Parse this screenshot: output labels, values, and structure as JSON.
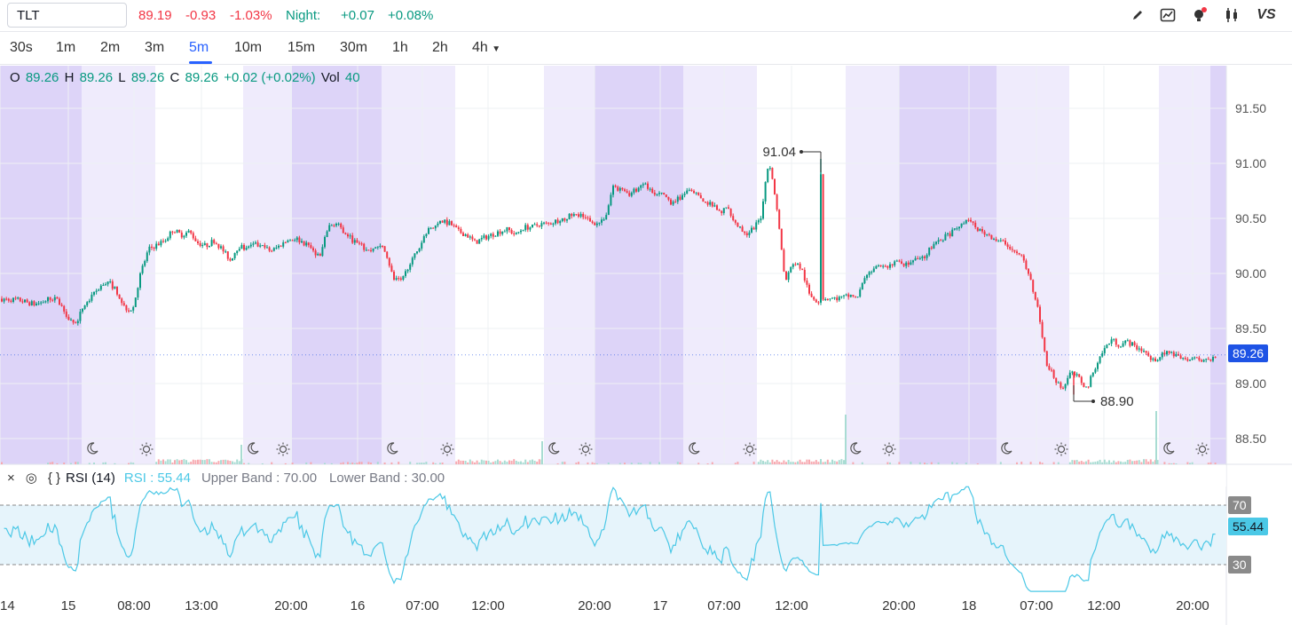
{
  "quote": {
    "symbol": "TLT",
    "price": "89.19",
    "change": "-0.93",
    "change_pct": "-1.03%",
    "night_label": "Night:",
    "night_change": "+0.07",
    "night_change_pct": "+0.08%"
  },
  "toolbar_icons": [
    "pencil-icon",
    "chart-type-icon",
    "indicator-bulb-icon",
    "candles-icon",
    "vs-compare-icon"
  ],
  "compare_label": "VS",
  "intervals": [
    "30s",
    "1m",
    "2m",
    "3m",
    "5m",
    "10m",
    "15m",
    "30m",
    "1h",
    "2h",
    "4h"
  ],
  "active_interval": "5m",
  "ohlc": {
    "o_label": "O",
    "o": "89.26",
    "h_label": "H",
    "h": "89.26",
    "l_label": "L",
    "l": "89.26",
    "c_label": "C",
    "c": "89.26",
    "change": "+0.02 (+0.02%)",
    "vol_label": "Vol",
    "vol": "40"
  },
  "rsi_legend": {
    "close_icon": "×",
    "settings_icon": "◎",
    "code_icon": "{ }",
    "title": "RSI (14)",
    "value_text": "RSI : 55.44",
    "upper_band": "Upper Band : 70.00",
    "lower_band": "Lower Band : 30.00"
  },
  "colors": {
    "up": "#089981",
    "down": "#f23645",
    "rsi_line": "#4bc8e6",
    "night_shade": "#ddd4f8",
    "pre_post_shade": "#efebfc",
    "price_badge": "#1e53e5"
  },
  "chart_data": {
    "type": "candlestick",
    "symbol": "TLT",
    "interval": "5m",
    "price_axis": {
      "ticks": [
        88.5,
        89.0,
        89.5,
        90.0,
        90.5,
        91.0,
        91.5
      ],
      "labels": [
        "88.50",
        "89.00",
        "89.50",
        "90.00",
        "90.50",
        "91.00",
        "91.50"
      ],
      "range": [
        88.4,
        91.8
      ]
    },
    "time_axis": {
      "labels": [
        "14",
        "15",
        "08:00",
        "13:00",
        "20:00",
        "16",
        "07:00",
        "12:00",
        "20:00",
        "17",
        "07:00",
        "12:00",
        "20:00",
        "18",
        "07:00",
        "12:00",
        "20:00"
      ]
    },
    "annotations": {
      "high": "91.04",
      "low": "88.90"
    },
    "last_price": "89.26",
    "price_path": [
      [
        0,
        89.77
      ],
      [
        2,
        89.76
      ],
      [
        4,
        89.72
      ],
      [
        5,
        89.74
      ],
      [
        6,
        89.78
      ],
      [
        7,
        89.75
      ],
      [
        8,
        89.62
      ],
      [
        9,
        89.53
      ],
      [
        10,
        89.7
      ],
      [
        11,
        89.78
      ],
      [
        12,
        89.88
      ],
      [
        13,
        89.93
      ],
      [
        14,
        89.85
      ],
      [
        15,
        89.7
      ],
      [
        16,
        89.65
      ],
      [
        17,
        90.0
      ],
      [
        18,
        90.22
      ],
      [
        19,
        90.26
      ],
      [
        20,
        90.3
      ],
      [
        21,
        90.4
      ],
      [
        22,
        90.35
      ],
      [
        23,
        90.38
      ],
      [
        24,
        90.28
      ],
      [
        25,
        90.25
      ],
      [
        26,
        90.3
      ],
      [
        27,
        90.22
      ],
      [
        28,
        90.12
      ],
      [
        29,
        90.25
      ],
      [
        30,
        90.22
      ],
      [
        31,
        90.26
      ],
      [
        32,
        90.24
      ],
      [
        33,
        90.2
      ],
      [
        34,
        90.25
      ],
      [
        35,
        90.3
      ],
      [
        36,
        90.32
      ],
      [
        37,
        90.28
      ],
      [
        38,
        90.22
      ],
      [
        39,
        90.15
      ],
      [
        40,
        90.42
      ],
      [
        41,
        90.45
      ],
      [
        42,
        90.38
      ],
      [
        43,
        90.3
      ],
      [
        44,
        90.25
      ],
      [
        45,
        90.2
      ],
      [
        46,
        90.25
      ],
      [
        47,
        90.22
      ],
      [
        48,
        89.95
      ],
      [
        49,
        89.92
      ],
      [
        50,
        90.1
      ],
      [
        51,
        90.2
      ],
      [
        52,
        90.38
      ],
      [
        53,
        90.42
      ],
      [
        54,
        90.47
      ],
      [
        55,
        90.45
      ],
      [
        56,
        90.38
      ],
      [
        57,
        90.35
      ],
      [
        58,
        90.28
      ],
      [
        59,
        90.32
      ],
      [
        60,
        90.35
      ],
      [
        61,
        90.38
      ],
      [
        62,
        90.4
      ],
      [
        63,
        90.35
      ],
      [
        64,
        90.42
      ],
      [
        65,
        90.42
      ],
      [
        66,
        90.45
      ],
      [
        67,
        90.45
      ],
      [
        68,
        90.48
      ],
      [
        69,
        90.5
      ],
      [
        70,
        90.53
      ],
      [
        71,
        90.52
      ],
      [
        72,
        90.48
      ],
      [
        73,
        90.45
      ],
      [
        74,
        90.52
      ],
      [
        75,
        90.8
      ],
      [
        76,
        90.75
      ],
      [
        77,
        90.72
      ],
      [
        78,
        90.78
      ],
      [
        79,
        90.8
      ],
      [
        80,
        90.7
      ],
      [
        81,
        90.72
      ],
      [
        82,
        90.65
      ],
      [
        83,
        90.68
      ],
      [
        84,
        90.75
      ],
      [
        85,
        90.72
      ],
      [
        86,
        90.65
      ],
      [
        87,
        90.62
      ],
      [
        88,
        90.55
      ],
      [
        89,
        90.6
      ],
      [
        90,
        90.45
      ],
      [
        91,
        90.35
      ],
      [
        92,
        90.4
      ],
      [
        93,
        90.5
      ],
      [
        94,
        91.04
      ],
      [
        95,
        90.6
      ],
      [
        96,
        89.92
      ],
      [
        97,
        90.1
      ],
      [
        98,
        90.05
      ],
      [
        99,
        89.8
      ],
      [
        100,
        89.75
      ],
      [
        101,
        89.78
      ],
      [
        102,
        89.77
      ],
      [
        103,
        89.78
      ],
      [
        104,
        89.8
      ],
      [
        105,
        89.8
      ],
      [
        106,
        90.0
      ],
      [
        107,
        90.05
      ],
      [
        108,
        90.05
      ],
      [
        109,
        90.08
      ],
      [
        110,
        90.1
      ],
      [
        111,
        90.08
      ],
      [
        112,
        90.12
      ],
      [
        113,
        90.15
      ],
      [
        114,
        90.25
      ],
      [
        115,
        90.3
      ],
      [
        116,
        90.35
      ],
      [
        117,
        90.4
      ],
      [
        118,
        90.48
      ],
      [
        119,
        90.45
      ],
      [
        120,
        90.38
      ],
      [
        121,
        90.35
      ],
      [
        122,
        90.3
      ],
      [
        123,
        90.28
      ],
      [
        124,
        90.2
      ],
      [
        125,
        90.15
      ],
      [
        126,
        89.95
      ],
      [
        127,
        89.7
      ],
      [
        128,
        89.2
      ],
      [
        129,
        89.05
      ],
      [
        130,
        88.95
      ],
      [
        131,
        89.1
      ],
      [
        132,
        89.05
      ],
      [
        133,
        88.95
      ],
      [
        134,
        89.15
      ],
      [
        135,
        89.3
      ],
      [
        136,
        89.4
      ],
      [
        137,
        89.35
      ],
      [
        138,
        89.38
      ],
      [
        139,
        89.33
      ],
      [
        140,
        89.3
      ],
      [
        141,
        89.2
      ],
      [
        142,
        89.25
      ],
      [
        143,
        89.28
      ],
      [
        144,
        89.25
      ],
      [
        145,
        89.22
      ],
      [
        146,
        89.23
      ],
      [
        147,
        89.2
      ],
      [
        148,
        89.22
      ],
      [
        149,
        89.26
      ]
    ],
    "rsi": {
      "period": 14,
      "current": "55.44",
      "bands": [
        30,
        70
      ],
      "band_labels": [
        "70",
        "30"
      ]
    }
  }
}
